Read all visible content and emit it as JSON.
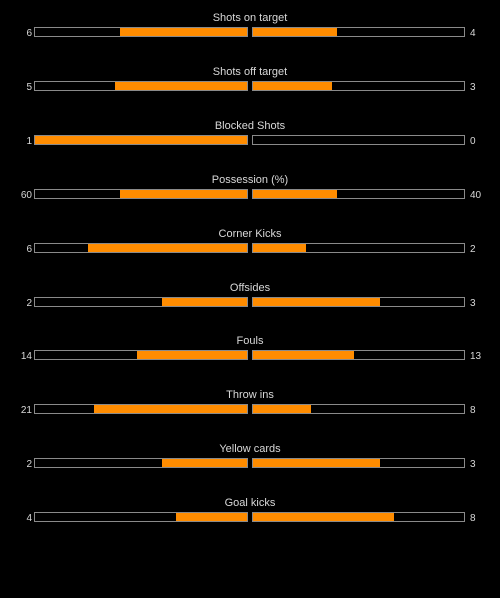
{
  "colors": {
    "background": "#000000",
    "bar_fill": "#ff8c00",
    "bar_border": "#8a8a8a",
    "text": "#d9d9d9"
  },
  "stats": [
    {
      "label": "Shots on target",
      "home": "6",
      "away": "4",
      "home_share": 0.6,
      "away_share": 0.4
    },
    {
      "label": "Shots off target",
      "home": "5",
      "away": "3",
      "home_share": 0.625,
      "away_share": 0.375
    },
    {
      "label": "Blocked Shots",
      "home": "1",
      "away": "0",
      "home_share": 1.0,
      "away_share": 0.0
    },
    {
      "label": "Possession (%)",
      "home": "60",
      "away": "40",
      "home_share": 0.6,
      "away_share": 0.4
    },
    {
      "label": "Corner Kicks",
      "home": "6",
      "away": "2",
      "home_share": 0.75,
      "away_share": 0.25
    },
    {
      "label": "Offsides",
      "home": "2",
      "away": "3",
      "home_share": 0.4,
      "away_share": 0.6
    },
    {
      "label": "Fouls",
      "home": "14",
      "away": "13",
      "home_share": 0.519,
      "away_share": 0.481
    },
    {
      "label": "Throw ins",
      "home": "21",
      "away": "8",
      "home_share": 0.724,
      "away_share": 0.276
    },
    {
      "label": "Yellow cards",
      "home": "2",
      "away": "3",
      "home_share": 0.4,
      "away_share": 0.6
    },
    {
      "label": "Goal kicks",
      "home": "4",
      "away": "8",
      "home_share": 0.333,
      "away_share": 0.667
    }
  ]
}
